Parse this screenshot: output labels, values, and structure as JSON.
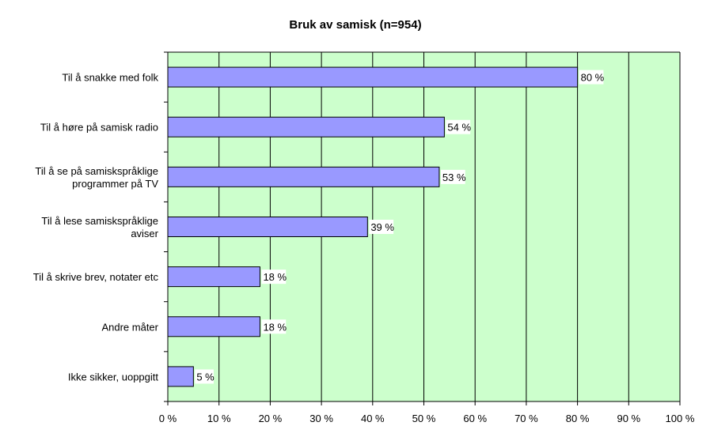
{
  "chart_data": {
    "type": "bar",
    "orientation": "horizontal",
    "title": "Bruk av samisk (n=954)",
    "categories": [
      [
        "Til å snakke med folk"
      ],
      [
        "Til å høre på samisk radio"
      ],
      [
        "Til å se på samiskspråklige",
        "programmer på TV"
      ],
      [
        "Til å lese samiskspråklige",
        "aviser"
      ],
      [
        "Til å skrive brev, notater etc"
      ],
      [
        "Andre måter"
      ],
      [
        "Ikke sikker, uoppgitt"
      ]
    ],
    "values": [
      80,
      54,
      53,
      39,
      18,
      18,
      5
    ],
    "data_labels": [
      "80 %",
      "54 %",
      "53 %",
      "39 %",
      "18 %",
      "18 %",
      "5 %"
    ],
    "xlim": [
      0,
      100
    ],
    "x_ticks": [
      0,
      10,
      20,
      30,
      40,
      50,
      60,
      70,
      80,
      90,
      100
    ],
    "x_tick_labels": [
      "0 %",
      "10 %",
      "20 %",
      "30 %",
      "40 %",
      "50 %",
      "60 %",
      "70 %",
      "80 %",
      "90 %",
      "100 %"
    ],
    "grid": true,
    "colors": {
      "plot_background": "#ccffcc",
      "bar_fill": "#9999ff",
      "bar_stroke": "#000000",
      "gridline": "#000000"
    }
  }
}
